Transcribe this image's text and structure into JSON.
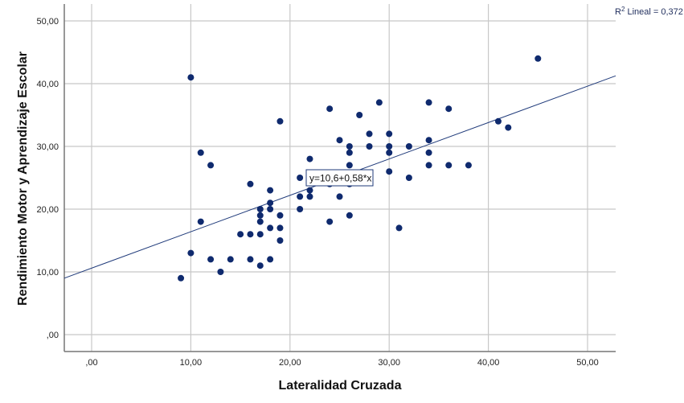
{
  "chart_data": {
    "type": "scatter",
    "title": "",
    "xlabel": "Lateralidad Cruzada",
    "ylabel": "Rendimiento Motor y Aprendizaje Escolar",
    "xlim": [
      -2.8,
      52.8
    ],
    "ylim": [
      -2.7,
      53.0
    ],
    "x_ticks": [
      0,
      10,
      20,
      30,
      40,
      50
    ],
    "x_tick_labels": [
      ",00",
      "10,00",
      "20,00",
      "30,00",
      "40,00",
      "50,00"
    ],
    "y_ticks": [
      0,
      10,
      20,
      30,
      40,
      50
    ],
    "y_tick_labels": [
      ",00",
      "10,00",
      "20,00",
      "30,00",
      "40,00",
      "50,00"
    ],
    "grid": true,
    "legend": "none",
    "point_color": "#0f2a6e",
    "line_color": "#1f3a7a",
    "fit_line": {
      "intercept": 10.6,
      "slope": 0.58,
      "label": "y=10,6+0,58*x"
    },
    "r2_label": "R² Lineal = 0,372",
    "r2_prefix": "R",
    "r2_sup": "2",
    "r2_suffix": " Lineal = 0,372",
    "points": [
      [
        9,
        9
      ],
      [
        10,
        13
      ],
      [
        10,
        41
      ],
      [
        11,
        18
      ],
      [
        11,
        29
      ],
      [
        12,
        12
      ],
      [
        12,
        27
      ],
      [
        13,
        10
      ],
      [
        14,
        12
      ],
      [
        15,
        16
      ],
      [
        16,
        12
      ],
      [
        16,
        16
      ],
      [
        16,
        24
      ],
      [
        17,
        11
      ],
      [
        17,
        16
      ],
      [
        17,
        18
      ],
      [
        17,
        19
      ],
      [
        17,
        20
      ],
      [
        18,
        12
      ],
      [
        18,
        17
      ],
      [
        18,
        20
      ],
      [
        18,
        21
      ],
      [
        18,
        23
      ],
      [
        19,
        15
      ],
      [
        19,
        17
      ],
      [
        19,
        19
      ],
      [
        19,
        34
      ],
      [
        21,
        20
      ],
      [
        21,
        22
      ],
      [
        21,
        25
      ],
      [
        22,
        22
      ],
      [
        22,
        23
      ],
      [
        22,
        28
      ],
      [
        24,
        18
      ],
      [
        24,
        24
      ],
      [
        24,
        36
      ],
      [
        25,
        22
      ],
      [
        25,
        31
      ],
      [
        26,
        19
      ],
      [
        26,
        24
      ],
      [
        26,
        27
      ],
      [
        26,
        29
      ],
      [
        26,
        30
      ],
      [
        27,
        35
      ],
      [
        28,
        30
      ],
      [
        28,
        32
      ],
      [
        29,
        37
      ],
      [
        30,
        26
      ],
      [
        30,
        29
      ],
      [
        30,
        30
      ],
      [
        30,
        32
      ],
      [
        31,
        17
      ],
      [
        32,
        25
      ],
      [
        32,
        30
      ],
      [
        34,
        27
      ],
      [
        34,
        29
      ],
      [
        34,
        31
      ],
      [
        34,
        37
      ],
      [
        36,
        27
      ],
      [
        36,
        36
      ],
      [
        38,
        27
      ],
      [
        41,
        34
      ],
      [
        42,
        33
      ],
      [
        45,
        44
      ]
    ]
  }
}
